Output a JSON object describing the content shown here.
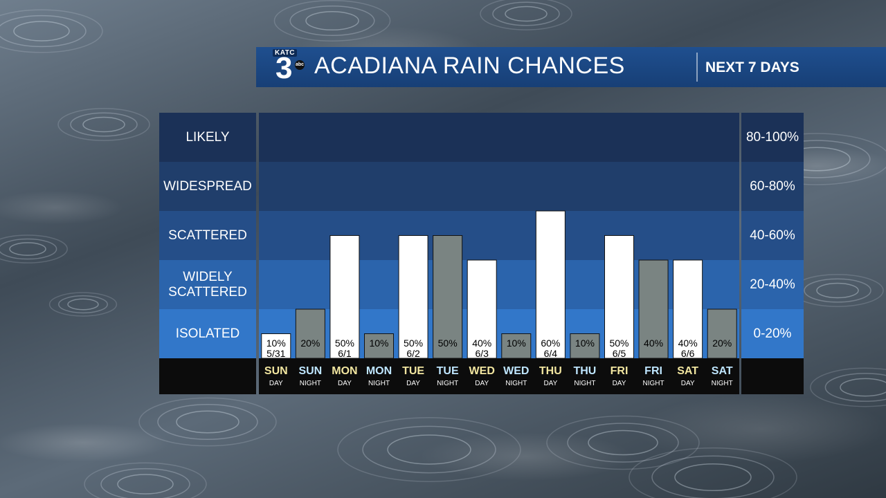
{
  "header": {
    "logo_text": "KATC",
    "logo_number": "3",
    "logo_network": "abc",
    "title": "ACADIANA RAIN CHANCES",
    "subtitle": "NEXT 7 DAYS"
  },
  "chart_data": {
    "type": "bar",
    "title": "ACADIANA RAIN CHANCES",
    "subtitle": "NEXT 7 DAYS",
    "ylim": [
      0,
      100
    ],
    "categories_left": [
      "LIKELY",
      "WIDESPREAD",
      "SCATTERED",
      "WIDELY SCATTERED",
      "ISOLATED"
    ],
    "categories_right": [
      "80-100%",
      "60-80%",
      "40-60%",
      "20-40%",
      "0-20%"
    ],
    "periods": [
      {
        "day": "SUN",
        "period": "DAY",
        "date": "5/31",
        "value": 10,
        "label": "10%"
      },
      {
        "day": "SUN",
        "period": "NIGHT",
        "date": "",
        "value": 20,
        "label": "20%"
      },
      {
        "day": "MON",
        "period": "DAY",
        "date": "6/1",
        "value": 50,
        "label": "50%"
      },
      {
        "day": "MON",
        "period": "NIGHT",
        "date": "",
        "value": 10,
        "label": "10%"
      },
      {
        "day": "TUE",
        "period": "DAY",
        "date": "6/2",
        "value": 50,
        "label": "50%"
      },
      {
        "day": "TUE",
        "period": "NIGHT",
        "date": "",
        "value": 50,
        "label": "50%"
      },
      {
        "day": "WED",
        "period": "DAY",
        "date": "6/3",
        "value": 40,
        "label": "40%"
      },
      {
        "day": "WED",
        "period": "NIGHT",
        "date": "",
        "value": 10,
        "label": "10%"
      },
      {
        "day": "THU",
        "period": "DAY",
        "date": "6/4",
        "value": 60,
        "label": "60%"
      },
      {
        "day": "THU",
        "period": "NIGHT",
        "date": "",
        "value": 10,
        "label": "10%"
      },
      {
        "day": "FRI",
        "period": "DAY",
        "date": "6/5",
        "value": 50,
        "label": "50%"
      },
      {
        "day": "FRI",
        "period": "NIGHT",
        "date": "",
        "value": 40,
        "label": "40%"
      },
      {
        "day": "SAT",
        "period": "DAY",
        "date": "6/6",
        "value": 40,
        "label": "40%"
      },
      {
        "day": "SAT",
        "period": "NIGHT",
        "date": "",
        "value": 20,
        "label": "20%"
      }
    ],
    "colors": {
      "day_bar": "#ffffff",
      "night_bar": "#7a8482",
      "day_text": "#f2e6a0",
      "night_text": "#bfe6ff",
      "bands": [
        "#1b3157",
        "#203e6b",
        "#254e88",
        "#2b64ac",
        "#3277c9"
      ],
      "footer": "#0c0c0c"
    }
  }
}
